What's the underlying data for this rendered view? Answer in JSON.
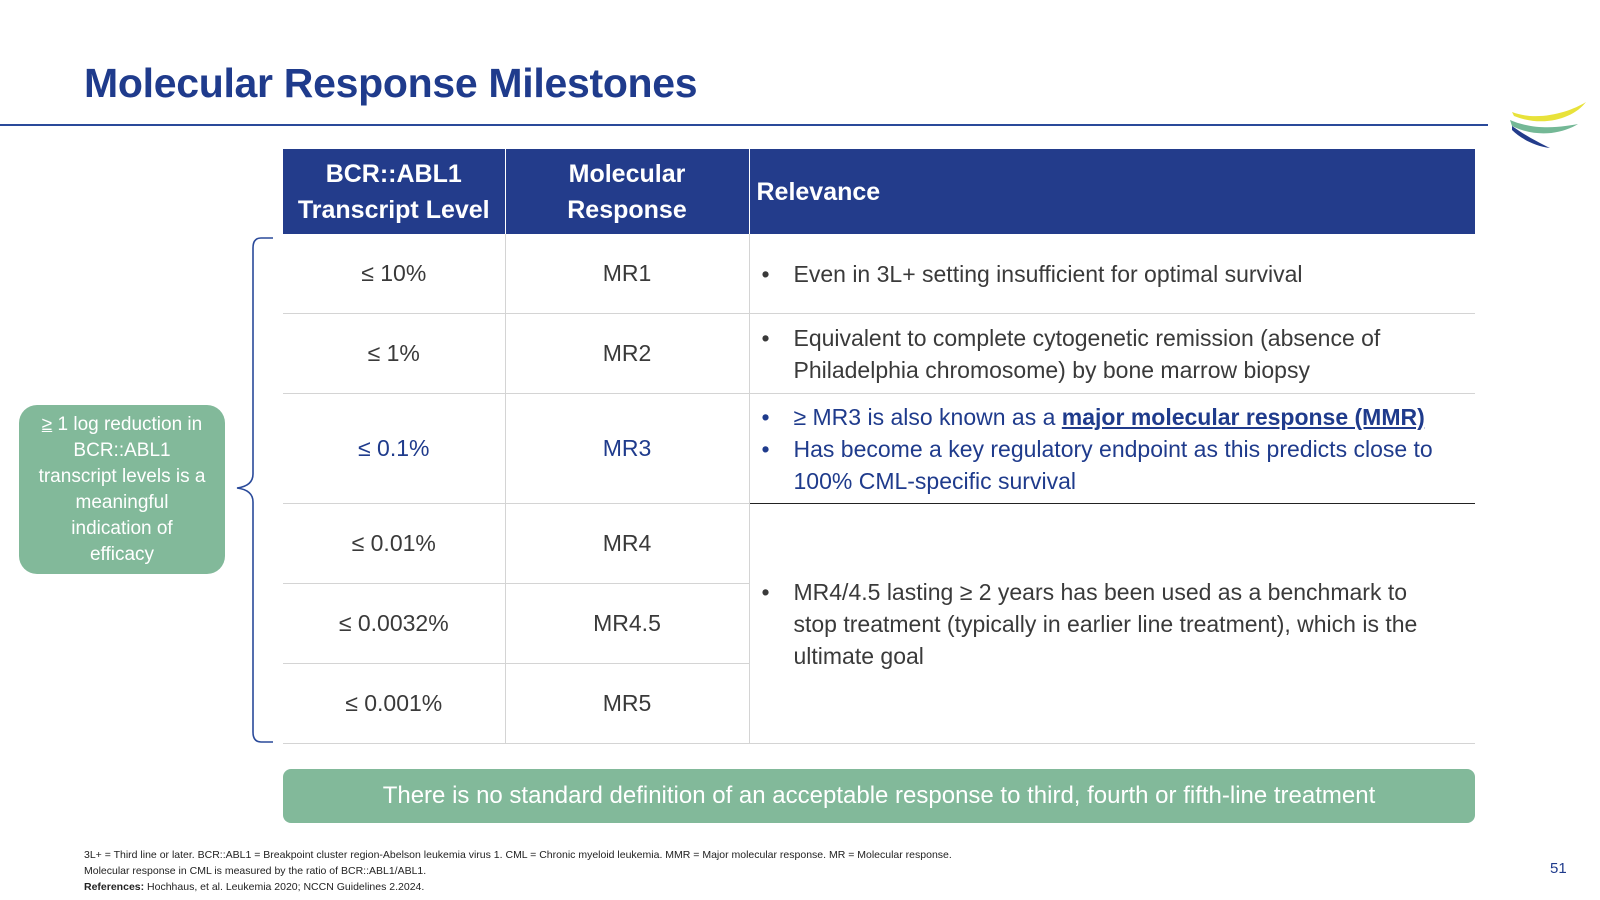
{
  "title": "Molecular Response Milestones",
  "table": {
    "headers": {
      "level_line1": "BCR::ABL1",
      "level_line2": "Transcript Level",
      "response_line1": "Molecular",
      "response_line2": "Response",
      "relevance": "Relevance"
    },
    "rows": [
      {
        "level": "≤ 10%",
        "response": "MR1"
      },
      {
        "level": "≤ 1%",
        "response": "MR2"
      },
      {
        "level": "≤ 0.1%",
        "response": "MR3"
      },
      {
        "level": "≤ 0.01%",
        "response": "MR4"
      },
      {
        "level": "≤ 0.0032%",
        "response": "MR4.5"
      },
      {
        "level": "≤ 0.001%",
        "response": "MR5"
      }
    ],
    "relevance": {
      "mr1": "Even in 3L+ setting insufficient for optimal survival",
      "mr2": "Equivalent to complete cytogenetic remission (absence of Philadelphia chromosome) by bone marrow biopsy",
      "mr3_a_prefix": "≥ MR3 is also known as a ",
      "mr3_a_link": "major molecular response (MMR)",
      "mr3_b": "Has become a key regulatory endpoint as this predicts close to 100% CML-specific survival",
      "mr4_5": "MR4/4.5 lasting ≥ 2 years has been used as a benchmark to stop treatment (typically in earlier line treatment), which is the ultimate goal"
    },
    "bullet": "•"
  },
  "callout": {
    "prefix": "≥",
    "text": " 1 log reduction in BCR::ABL1 transcript levels is a meaningful indication of efficacy"
  },
  "banner": "There is no standard definition of an acceptable response to third, fourth or fifth-line treatment",
  "footnotes": {
    "line1": "3L+ = Third line or later. BCR::ABL1 = Breakpoint cluster region-Abelson leukemia virus 1. CML = Chronic myeloid leukemia. MMR = Major molecular response. MR = Molecular response.",
    "line2": "Molecular response in CML is measured by the ratio of BCR::ABL1/ABL1.",
    "refs_label": "References:",
    "refs_text": " Hochhaus, et al. Leukemia 2020; NCCN Guidelines 2.2024."
  },
  "page_number": "51",
  "colors": {
    "title": "#1f3b8c",
    "header_bg": "#233c8b",
    "green": "#82b99a",
    "logo_yellow": "#e8e23a",
    "logo_green": "#74b896",
    "logo_navy": "#233c8b"
  },
  "logo_icon": "swoosh-logo-icon"
}
